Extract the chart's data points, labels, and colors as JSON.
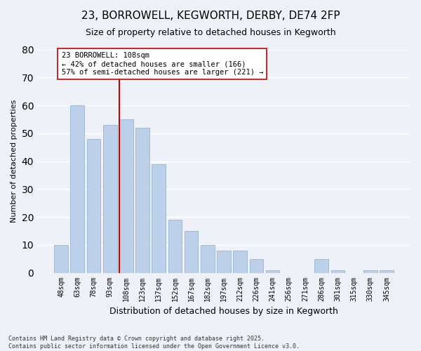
{
  "title": "23, BORROWELL, KEGWORTH, DERBY, DE74 2FP",
  "subtitle": "Size of property relative to detached houses in Kegworth",
  "xlabel": "Distribution of detached houses by size in Kegworth",
  "ylabel": "Number of detached properties",
  "bar_labels": [
    "48sqm",
    "63sqm",
    "78sqm",
    "93sqm",
    "108sqm",
    "123sqm",
    "137sqm",
    "152sqm",
    "167sqm",
    "182sqm",
    "197sqm",
    "212sqm",
    "226sqm",
    "241sqm",
    "256sqm",
    "271sqm",
    "286sqm",
    "301sqm",
    "315sqm",
    "330sqm",
    "345sqm"
  ],
  "bar_values": [
    10,
    60,
    48,
    53,
    55,
    52,
    39,
    19,
    15,
    10,
    8,
    8,
    5,
    1,
    0,
    0,
    5,
    1,
    0,
    1,
    1
  ],
  "bar_color": "#bdd0e9",
  "vline_color": "#cc0000",
  "ylim": [
    0,
    80
  ],
  "yticks": [
    0,
    10,
    20,
    30,
    40,
    50,
    60,
    70,
    80
  ],
  "annotation_title": "23 BORROWELL: 108sqm",
  "annotation_line1": "← 42% of detached houses are smaller (166)",
  "annotation_line2": "57% of semi-detached houses are larger (221) →",
  "annotation_box_color": "#ffffff",
  "annotation_box_edge": "#cc0000",
  "footnote1": "Contains HM Land Registry data © Crown copyright and database right 2025.",
  "footnote2": "Contains public sector information licensed under the Open Government Licence v3.0.",
  "bg_color": "#eef2f8",
  "grid_color": "#ffffff"
}
